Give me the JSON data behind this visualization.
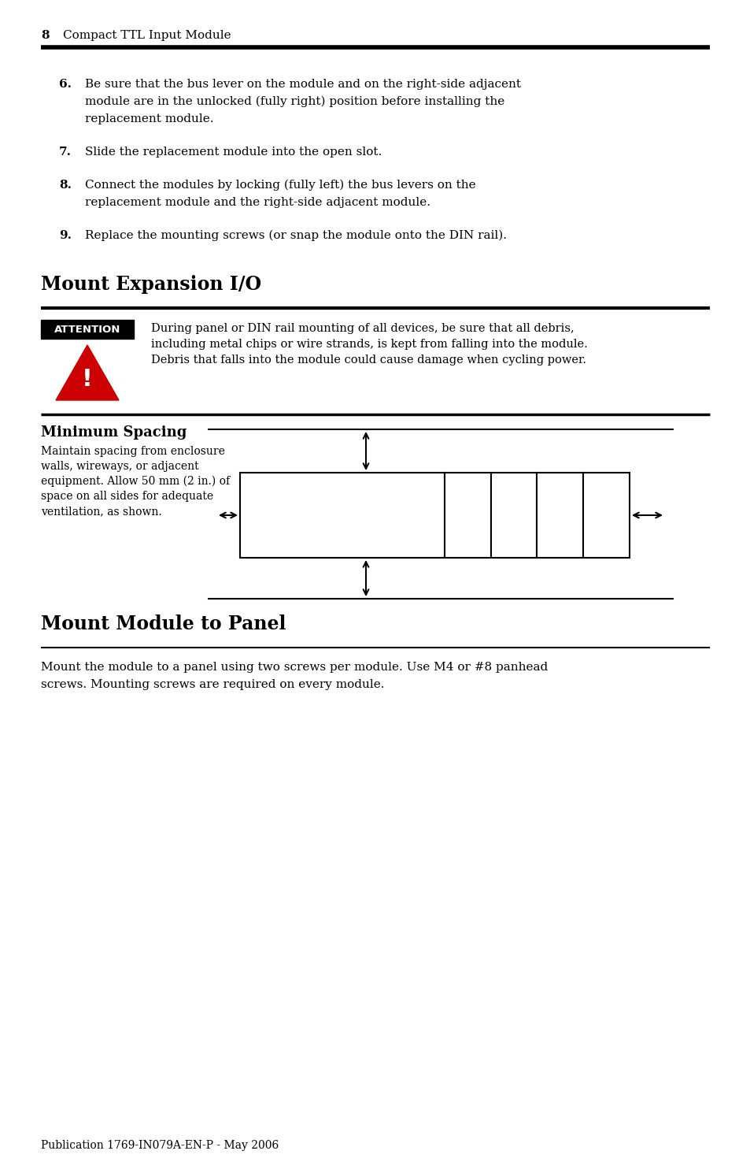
{
  "page_number": "8",
  "page_header": "Compact TTL Input Module",
  "background_color": "#ffffff",
  "text_color": "#000000",
  "item6_num": "6.",
  "item6_line1": "Be sure that the bus lever on the module and on the right-side adjacent",
  "item6_line2": "module are in the unlocked (fully right) position before installing the",
  "item6_line3": "replacement module.",
  "item7_num": "7.",
  "item7_text": "Slide the replacement module into the open slot.",
  "item8_num": "8.",
  "item8_line1": "Connect the modules by locking (fully left) the bus levers on the",
  "item8_line2": "replacement module and the right-side adjacent module.",
  "item9_num": "9.",
  "item9_text": "Replace the mounting screws (or snap the module onto the DIN rail).",
  "section1_title": "Mount Expansion I/O",
  "attention_label": "ATTENTION",
  "attn_line1": "During panel or DIN rail mounting of all devices, be sure that all debris,",
  "attn_line2": "including metal chips or wire strands, is kept from falling into the module.",
  "attn_line3": "Debris that falls into the module could cause damage when cycling power.",
  "min_spacing_title": "Minimum Spacing",
  "ms_line1": "Maintain spacing from enclosure",
  "ms_line2": "walls, wireways, or adjacent",
  "ms_line3": "equipment. Allow 50 mm (2 in.) of",
  "ms_line4": "space on all sides for adequate",
  "ms_line5": "ventilation, as shown.",
  "section2_title": "Mount Module to Panel",
  "sec2_line1": "Mount the module to a panel using two screws per module. Use M4 or #8 panhead",
  "sec2_line2": "screws. Mounting screws are required on every module.",
  "footer": "Publication 1769-IN079A-EN-P - May 2006"
}
